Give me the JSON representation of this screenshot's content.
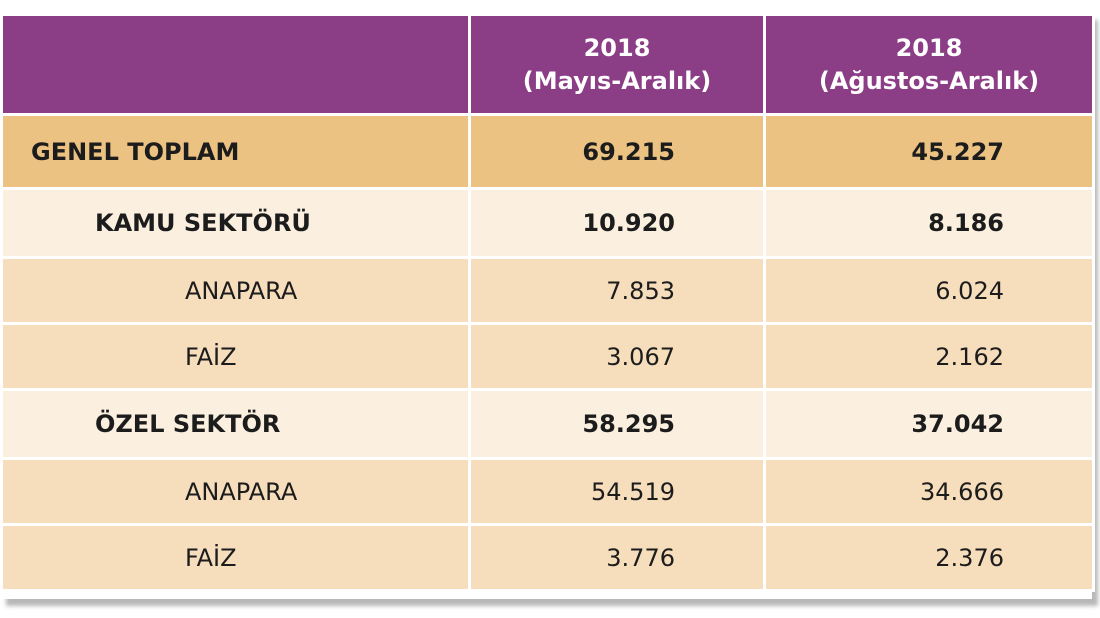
{
  "header": {
    "col2_line1": "2018",
    "col2_line2": "(Mayıs-Aralık)",
    "col3_line1": "2018",
    "col3_line2": "(Ağustos-Aralık)"
  },
  "rows": [
    {
      "label": "GENEL TOPLAM",
      "may_dec": "69.215",
      "aug_dec": "45.227"
    },
    {
      "label": "KAMU SEKTÖRÜ",
      "may_dec": "10.920",
      "aug_dec": "8.186"
    },
    {
      "label": "ANAPARA",
      "may_dec": "7.853",
      "aug_dec": "6.024"
    },
    {
      "label": "FAİZ",
      "may_dec": "3.067",
      "aug_dec": "2.162"
    },
    {
      "label": "ÖZEL SEKTÖR",
      "may_dec": "58.295",
      "aug_dec": "37.042"
    },
    {
      "label": "ANAPARA",
      "may_dec": "54.519",
      "aug_dec": "34.666"
    },
    {
      "label": "FAİZ",
      "may_dec": "3.776",
      "aug_dec": "2.376"
    }
  ],
  "colors": {
    "header_bg": "#8b3d86",
    "total_bg": "#ecc283",
    "sector_bg": "#fbf0df",
    "detail_bg": "#f6ddbb"
  }
}
